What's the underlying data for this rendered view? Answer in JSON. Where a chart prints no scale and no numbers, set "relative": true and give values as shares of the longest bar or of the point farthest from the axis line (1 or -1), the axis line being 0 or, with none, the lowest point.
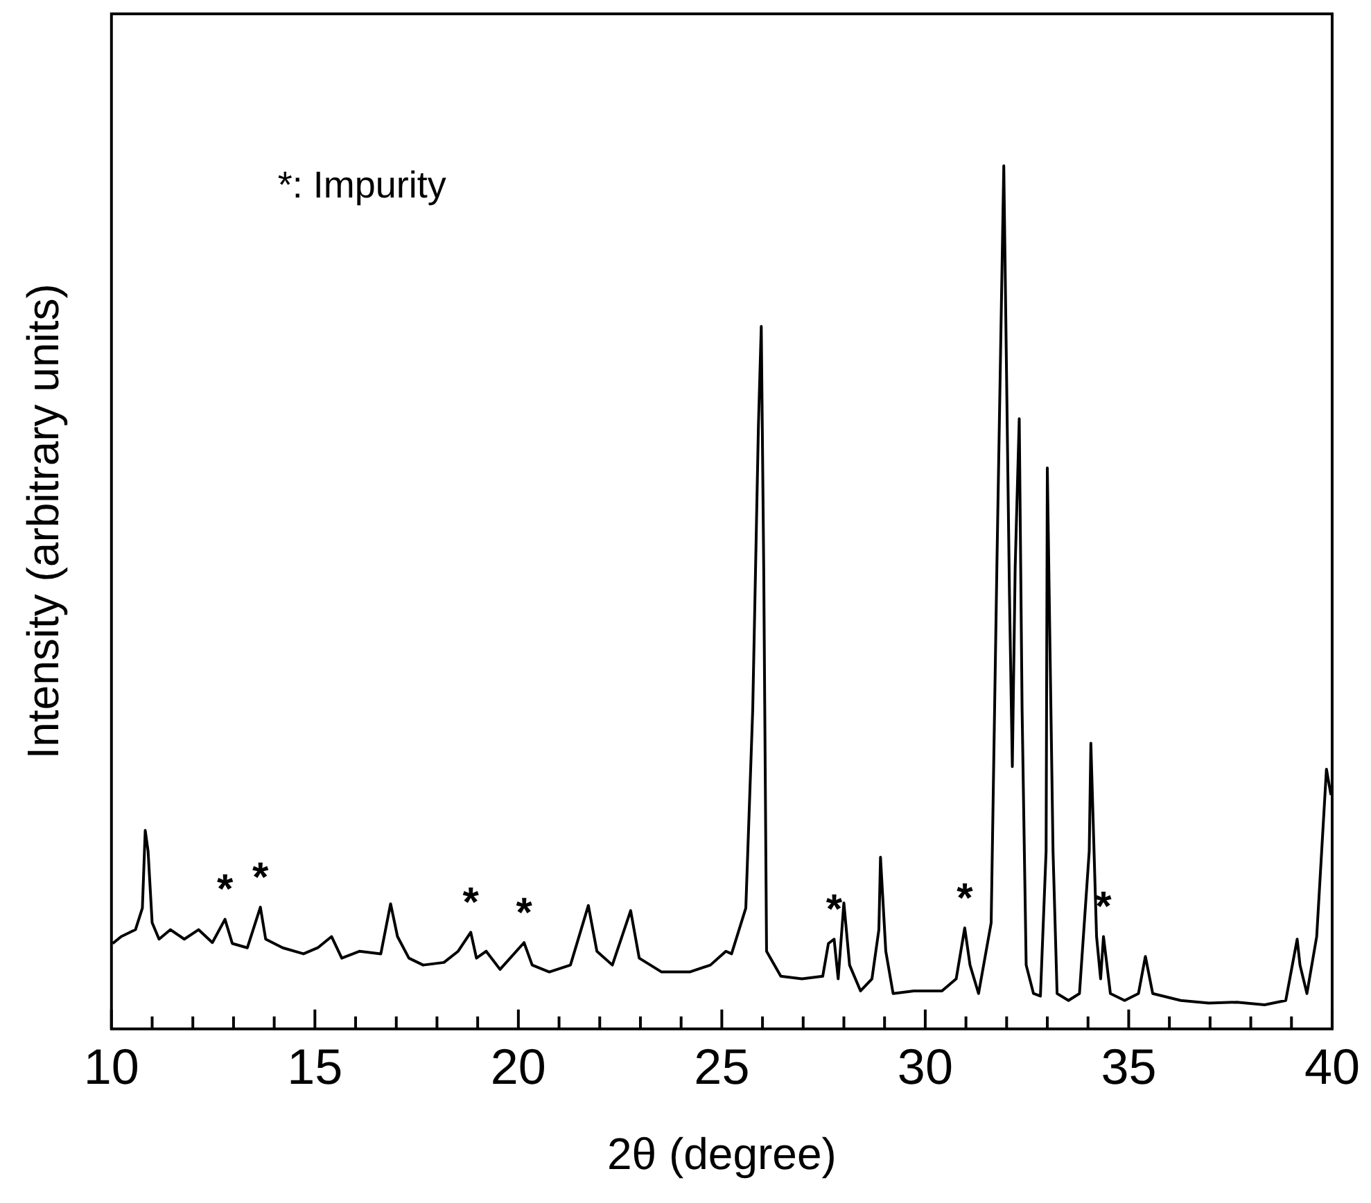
{
  "chart_data": {
    "type": "line",
    "relative": true,
    "xlabel": "2θ (degree)",
    "ylabel": "Intensity (arbitrary units)",
    "xlim": [
      10,
      40
    ],
    "xticks": [
      10,
      {
        "value": 11,
        "label": null
      },
      {
        "value": 12,
        "label": null
      },
      {
        "value": 13,
        "label": null
      },
      {
        "value": 14,
        "label": null
      },
      15,
      {
        "value": 16,
        "label": null
      },
      {
        "value": 17,
        "label": null
      },
      {
        "value": 18,
        "label": null
      },
      {
        "value": 19,
        "label": null
      },
      20,
      {
        "value": 21,
        "label": null
      },
      {
        "value": 22,
        "label": null
      },
      {
        "value": 23,
        "label": null
      },
      {
        "value": 24,
        "label": null
      },
      25,
      {
        "value": 26,
        "label": null
      },
      {
        "value": 27,
        "label": null
      },
      {
        "value": 28,
        "label": null
      },
      {
        "value": 29,
        "label": null
      },
      30,
      {
        "value": 31,
        "label": null
      },
      {
        "value": 32,
        "label": null
      },
      {
        "value": 33,
        "label": null
      },
      {
        "value": 34,
        "label": null
      },
      35,
      {
        "value": 36,
        "label": null
      },
      {
        "value": 37,
        "label": null
      },
      {
        "value": 38,
        "label": null
      },
      {
        "value": 39,
        "label": null
      },
      40
    ],
    "series": [
      {
        "color": "#000000",
        "x": [
          10.03,
          10.24,
          10.59,
          10.76,
          10.83,
          10.9,
          11.0,
          11.17,
          11.45,
          11.79,
          12.14,
          12.48,
          12.79,
          12.97,
          13.34,
          13.66,
          13.79,
          14.21,
          14.72,
          15.07,
          15.41,
          15.66,
          16.1,
          16.62,
          16.86,
          17.03,
          17.31,
          17.66,
          18.17,
          18.52,
          18.83,
          18.97,
          19.21,
          19.55,
          20.14,
          20.34,
          20.76,
          21.28,
          21.72,
          21.93,
          22.31,
          22.76,
          22.97,
          23.52,
          24.21,
          24.72,
          25.1,
          25.24,
          25.59,
          25.76,
          25.9,
          25.97,
          26.03,
          26.1,
          26.45,
          26.97,
          27.48,
          27.62,
          27.76,
          27.86,
          28.0,
          28.14,
          28.41,
          28.69,
          28.86,
          28.9,
          29.03,
          29.21,
          29.72,
          30.41,
          30.76,
          30.97,
          31.1,
          31.31,
          31.62,
          31.76,
          31.93,
          32.07,
          32.14,
          32.21,
          32.31,
          32.38,
          32.48,
          32.66,
          32.83,
          32.97,
          33.0,
          33.14,
          33.24,
          33.52,
          33.79,
          34.03,
          34.07,
          34.21,
          34.31,
          34.38,
          34.55,
          34.9,
          35.24,
          35.41,
          35.59,
          36.28,
          36.97,
          37.66,
          38.34,
          38.86,
          39.14,
          39.21,
          39.38,
          39.62,
          39.86,
          39.97
        ],
        "values": [
          0.099,
          0.107,
          0.115,
          0.14,
          0.23,
          0.206,
          0.123,
          0.104,
          0.115,
          0.104,
          0.115,
          0.1,
          0.127,
          0.099,
          0.094,
          0.141,
          0.104,
          0.094,
          0.087,
          0.094,
          0.107,
          0.082,
          0.09,
          0.087,
          0.145,
          0.107,
          0.082,
          0.074,
          0.077,
          0.09,
          0.112,
          0.082,
          0.09,
          0.069,
          0.1,
          0.074,
          0.066,
          0.074,
          0.143,
          0.09,
          0.074,
          0.137,
          0.082,
          0.066,
          0.066,
          0.074,
          0.09,
          0.087,
          0.14,
          0.37,
          0.699,
          0.814,
          0.535,
          0.09,
          0.061,
          0.058,
          0.061,
          0.099,
          0.104,
          0.058,
          0.146,
          0.074,
          0.044,
          0.058,
          0.115,
          0.199,
          0.09,
          0.041,
          0.044,
          0.044,
          0.058,
          0.117,
          0.074,
          0.041,
          0.123,
          0.535,
          1,
          0.502,
          0.304,
          0.535,
          0.707,
          0.37,
          0.074,
          0.041,
          0.038,
          0.206,
          0.65,
          0.206,
          0.041,
          0.033,
          0.041,
          0.206,
          0.331,
          0.107,
          0.058,
          0.107,
          0.041,
          0.033,
          0.041,
          0.084,
          0.041,
          0.033,
          0.03,
          0.031,
          0.028,
          0.033,
          0.104,
          0.074,
          0.041,
          0.107,
          0.301,
          0.271
        ]
      }
    ],
    "annotations": [
      "*: Impurity",
      {
        "text": "*",
        "x": 12.79,
        "y": 0.127
      },
      {
        "text": "*",
        "x": 13.66,
        "y": 0.141
      },
      {
        "text": "*",
        "x": 18.83,
        "y": 0.112
      },
      {
        "text": "*",
        "x": 20.14,
        "y": 0.1
      },
      {
        "text": "*",
        "x": 27.76,
        "y": 0.104
      },
      {
        "text": "*",
        "x": 30.97,
        "y": 0.117
      },
      {
        "text": "*",
        "x": 34.38,
        "y": 0.107
      }
    ]
  }
}
